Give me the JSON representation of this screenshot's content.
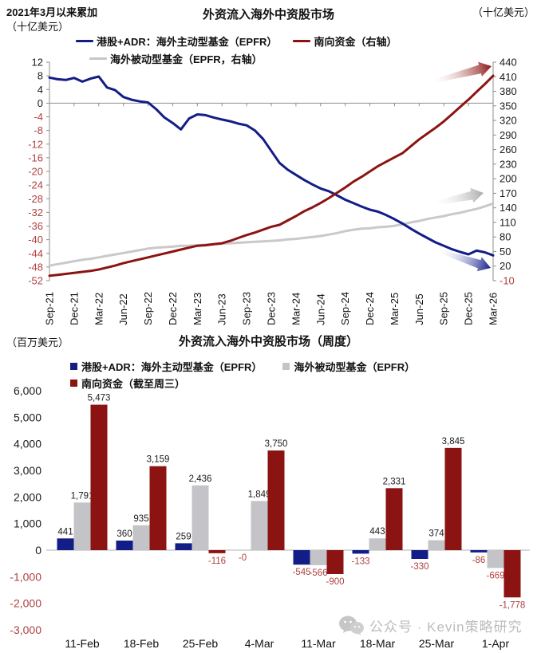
{
  "page": {
    "note_line1": "2021年3月以来累加",
    "note_line2": "（十亿美元）",
    "unit_right_top": "（十亿美元）",
    "unit_bottom": "（百万美元）"
  },
  "top_chart": {
    "title": "外资流入海外中资股市场",
    "legend": [
      {
        "label": "港股+ADR：海外主动型基金（EPFR）",
        "color": "#131d87"
      },
      {
        "label": "南向资金（右轴）",
        "color": "#8b1412"
      },
      {
        "label": "海外被动型基金（EPFR，右轴）",
        "color": "#c6c6c6"
      }
    ]
  },
  "bottom_chart": {
    "title": "外资流入海外中资股市场（周度）",
    "legend": [
      {
        "label": "港股+ADR：海外主动型基金（EPFR）",
        "color": "#131d87"
      },
      {
        "label": "海外被动型基金（EPFR）",
        "color": "#c4c4c8"
      },
      {
        "label": "南向资金（截至周三）",
        "color": "#8b1412"
      }
    ]
  },
  "watermark": {
    "icon": "wechat-icon",
    "text": "公众号 · Kevin策略研究"
  },
  "colors": {
    "navy": "#131d87",
    "darkred": "#8b1412",
    "gray_bar": "#c4c4c8",
    "gray_line": "#c9c9c9",
    "neg_text": "#b04040",
    "pos_text": "#1a1a1a",
    "axis": "#8f8f8f",
    "watermark": "#bcbcbc"
  },
  "chart_data": [
    {
      "type": "line",
      "title": "外资流入海外中资股市场",
      "subtitle": "2021年3月以来累加",
      "unit_left": "十亿美元",
      "unit_right": "十亿美元",
      "x_tick_labels": [
        "Sep-21",
        "Dec-21",
        "Mar-22",
        "Jun-22",
        "Sep-22",
        "Dec-22",
        "Mar-23",
        "Jun-23",
        "Sep-23",
        "Dec-23",
        "Mar-24",
        "Jun-24",
        "Sep-24",
        "Dec-24",
        "Mar-25",
        "Jun-25",
        "Sep-25",
        "Dec-25",
        "Mar-26"
      ],
      "y_left": {
        "min": -52,
        "max": 12,
        "step": 4
      },
      "y_right": {
        "min": -10,
        "max": 440,
        "step": 30
      },
      "grid": "zero-line-only",
      "legend_position": "top",
      "series": [
        {
          "name": "港股+ADR：海外主动型基金（EPFR）",
          "axis": "left",
          "color": "#131d87",
          "end_arrow": "down",
          "values": [
            7.5,
            7.0,
            6.8,
            7.4,
            6.3,
            7.2,
            7.8,
            4.6,
            3.8,
            1.8,
            1.0,
            0.5,
            0.2,
            -1.8,
            -4.2,
            -5.8,
            -7.7,
            -4.5,
            -3.3,
            -3.5,
            -4.2,
            -4.8,
            -5.3,
            -6.0,
            -6.5,
            -8.0,
            -10.5,
            -14.0,
            -17.5,
            -19.5,
            -21.0,
            -22.5,
            -23.8,
            -25.0,
            -25.8,
            -27.0,
            -28.3,
            -29.3,
            -30.3,
            -31.2,
            -31.8,
            -32.8,
            -34.0,
            -35.3,
            -36.8,
            -38.2,
            -39.5,
            -40.8,
            -41.8,
            -42.8,
            -43.6,
            -44.3,
            -43.2,
            -43.7,
            -44.6
          ]
        },
        {
          "name": "南向资金（右轴）",
          "axis": "right",
          "color": "#8b1412",
          "end_arrow": "up",
          "values": [
            0,
            2,
            4,
            6,
            8,
            10,
            13,
            17,
            21,
            26,
            30,
            34,
            38,
            42,
            46,
            50,
            54,
            58,
            62,
            63,
            65,
            67,
            72,
            78,
            84,
            89,
            95,
            101,
            105,
            114,
            123,
            133,
            141,
            150,
            160,
            171,
            182,
            194,
            204,
            215,
            226,
            235,
            244,
            253,
            267,
            281,
            293,
            305,
            318,
            333,
            348,
            363,
            379,
            395,
            412
          ]
        },
        {
          "name": "海外被动型基金（EPFR，右轴）",
          "axis": "right",
          "color": "#c9c9c9",
          "end_arrow": "flat",
          "values": [
            21,
            24,
            27,
            30,
            33,
            35,
            38,
            41,
            44,
            47,
            50,
            53,
            56,
            58,
            59,
            60,
            62,
            62,
            63,
            64,
            65,
            66,
            67,
            68,
            69,
            70,
            71,
            72,
            73,
            75,
            76,
            78,
            80,
            82,
            85,
            88,
            92,
            95,
            97,
            98,
            100,
            101,
            103,
            106,
            110,
            113,
            117,
            120,
            123,
            127,
            130,
            134,
            138,
            143,
            149
          ]
        }
      ]
    },
    {
      "type": "bar",
      "title": "外资流入海外中资股市场（周度）",
      "unit": "百万美元",
      "categories": [
        "11-Feb",
        "18-Feb",
        "25-Feb",
        "4-Mar",
        "11-Mar",
        "18-Mar",
        "25-Mar",
        "1-Apr"
      ],
      "y": {
        "min": -3000,
        "max": 6000,
        "step": 1000
      },
      "legend_position": "top",
      "series": [
        {
          "name": "港股+ADR：海外主动型基金（EPFR）",
          "color": "#131d87",
          "values": [
            441,
            360,
            259,
            0,
            -545,
            -133,
            -330,
            -86
          ],
          "labels": [
            "441",
            "360",
            "259",
            "-0",
            "-545",
            "-133",
            "-330",
            "-86"
          ]
        },
        {
          "name": "海外被动型基金（EPFR）",
          "color": "#c4c4c8",
          "values": [
            1791,
            935,
            2436,
            1849,
            -566,
            443,
            374,
            -669
          ],
          "labels": [
            "1,791",
            "935",
            "2,436",
            "1,849",
            "-566",
            "443",
            "374",
            "-669"
          ]
        },
        {
          "name": "南向资金（截至周三）",
          "color": "#8b1412",
          "values": [
            5473,
            3159,
            -116,
            3750,
            -900,
            2331,
            3845,
            -1778
          ],
          "labels": [
            "5,473",
            "3,159",
            "-116",
            "3,750",
            "-900",
            "2,331",
            "3,845",
            "-1,778"
          ]
        }
      ]
    }
  ]
}
